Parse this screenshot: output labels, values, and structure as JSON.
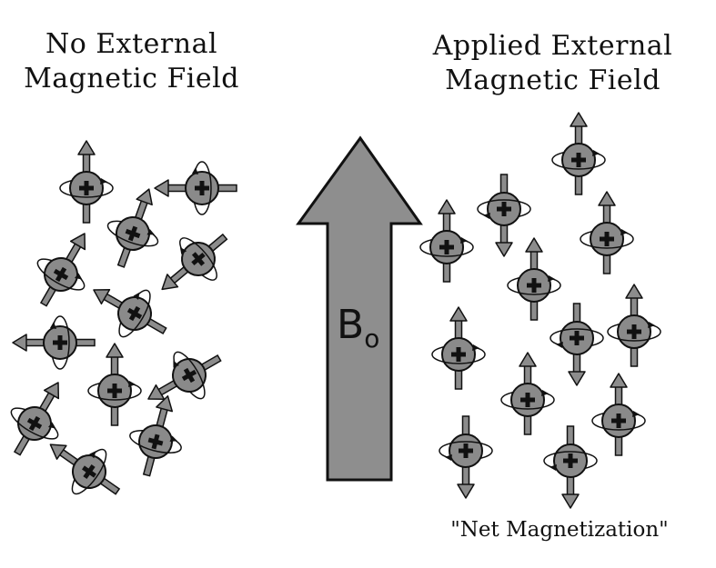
{
  "left_title": [
    "No External",
    "Magnetic Field"
  ],
  "right_title": [
    "Applied External",
    "Magnetic Field"
  ],
  "field_label": {
    "main": "B",
    "sub": "o"
  },
  "caption": "\"Net Magnetization\"",
  "colors": {
    "sphere_fill": "#8a8a8a",
    "arrow_fill": "#8c8c8c",
    "outline": "#111111",
    "big_arrow_fill": "#8e8e8e"
  }
}
